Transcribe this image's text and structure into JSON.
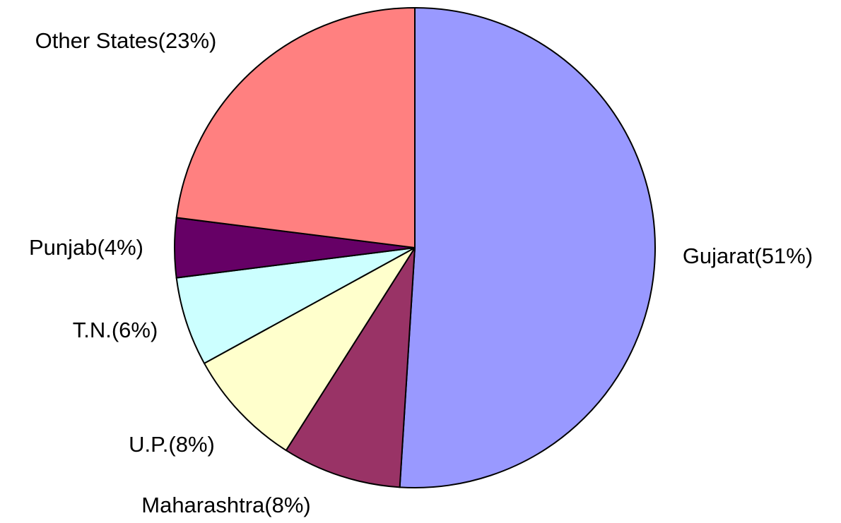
{
  "chart_data": {
    "type": "pie",
    "categories": [
      "Gujarat(51%)",
      "Maharashtra(8%)",
      "U.P.(8%)",
      "T.N.(6%)",
      "Punjab(4%)",
      "Other States(23%)"
    ],
    "values": [
      51,
      8,
      8,
      6,
      4,
      23
    ],
    "colors": [
      "#9999ff",
      "#993366",
      "#ffffcc",
      "#ccffff",
      "#660066",
      "#ff8080"
    ]
  }
}
